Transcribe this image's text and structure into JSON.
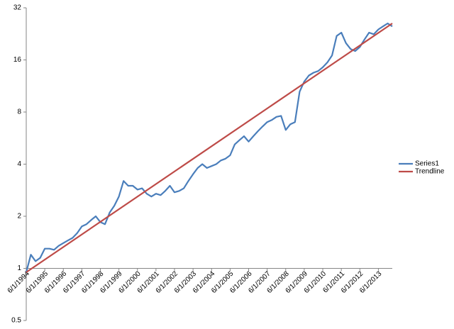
{
  "chart_data": {
    "type": "line",
    "log_base": 2,
    "ylim": [
      0.5,
      32
    ],
    "yticks": [
      0.5,
      1,
      2,
      4,
      8,
      16,
      32
    ],
    "x_axis_crosses": 1,
    "grid": false,
    "legend": "right",
    "categories": [
      "6/1/1994",
      null,
      null,
      null,
      "6/1/1995",
      null,
      null,
      null,
      "6/1/1996",
      null,
      null,
      null,
      "6/1/1997",
      null,
      null,
      null,
      "6/1/1998",
      null,
      null,
      null,
      "6/1/1999",
      null,
      null,
      null,
      "6/1/2000",
      null,
      null,
      null,
      "6/1/2001",
      null,
      null,
      null,
      "6/1/2002",
      null,
      null,
      null,
      "6/1/2003",
      null,
      null,
      null,
      "6/1/2004",
      null,
      null,
      null,
      "6/1/2005",
      null,
      null,
      null,
      "6/1/2006",
      null,
      null,
      null,
      "6/1/2007",
      null,
      null,
      null,
      "6/1/2008",
      null,
      null,
      null,
      "6/1/2009",
      null,
      null,
      null,
      "6/1/2010",
      null,
      null,
      null,
      "6/1/2011",
      null,
      null,
      null,
      "6/1/2012",
      null,
      null,
      null,
      "6/1/2013",
      null,
      null,
      null
    ],
    "series": [
      {
        "name": "Series1",
        "color": "#4a7ebb",
        "values": [
          0.95,
          1.2,
          1.1,
          1.15,
          1.3,
          1.3,
          1.28,
          1.35,
          1.4,
          1.45,
          1.5,
          1.6,
          1.75,
          1.8,
          1.9,
          2.0,
          1.85,
          1.8,
          2.1,
          2.3,
          2.6,
          3.2,
          3.0,
          3.0,
          2.85,
          2.9,
          2.7,
          2.6,
          2.7,
          2.65,
          2.8,
          3.0,
          2.75,
          2.8,
          2.9,
          3.2,
          3.5,
          3.8,
          4.0,
          3.8,
          3.9,
          4.0,
          4.2,
          4.3,
          4.5,
          5.2,
          5.5,
          5.8,
          5.4,
          5.8,
          6.2,
          6.6,
          7.0,
          7.2,
          7.5,
          7.6,
          6.3,
          6.8,
          7.0,
          10.5,
          12,
          13,
          13.5,
          13.8,
          14.5,
          15.5,
          17,
          22,
          23,
          20,
          18.5,
          18,
          19,
          21,
          23,
          22.5,
          24,
          25,
          26,
          25
        ]
      }
    ],
    "trendline": {
      "name": "Trendline",
      "color": "#be4b48",
      "start": 0.95,
      "end": 26
    }
  }
}
